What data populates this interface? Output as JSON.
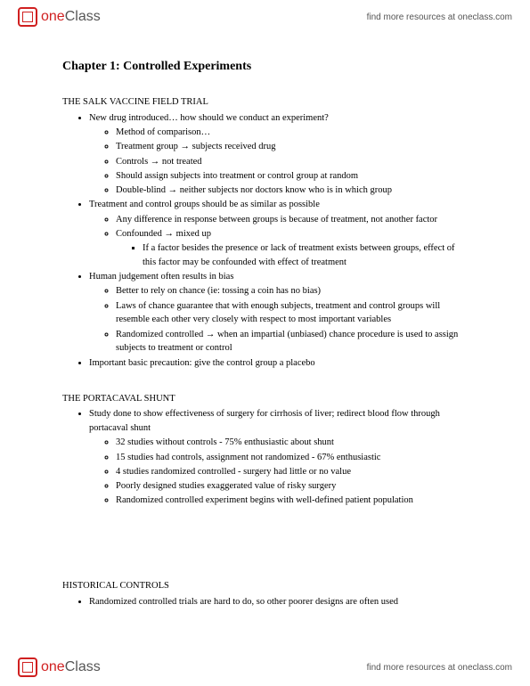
{
  "brand": {
    "one": "one",
    "class": "Class"
  },
  "header_link": "find more resources at oneclass.com",
  "chapter_title": "Chapter 1:  Controlled Experiments",
  "sec1": {
    "title": "THE SALK VACCINE FIELD TRIAL",
    "b1": "New drug introduced… how should we conduct an experiment?",
    "b1a": "Method of comparison…",
    "b1b": "Treatment group → subjects received drug",
    "b1c": "Controls → not treated",
    "b1d": "Should assign subjects into treatment or control group at random",
    "b1e": "Double-blind → neither subjects nor doctors know who is in which group",
    "b2": "Treatment and control groups should be as similar as possible",
    "b2a": "Any difference in response between groups is because of treatment, not another factor",
    "b2b": "Confounded → mixed up",
    "b2b1": "If a factor besides the presence or lack of treatment exists between groups, effect of this factor may be confounded with effect of treatment",
    "b3": "Human judgement often results in bias",
    "b3a": "Better to rely on chance (ie: tossing a coin has no bias)",
    "b3b": "Laws of chance guarantee that with enough subjects, treatment and control groups will resemble each other very closely with respect to most important variables",
    "b3c": "Randomized controlled → when an impartial (unbiased) chance procedure is used to assign subjects to treatment or control",
    "b4": "Important basic precaution: give the control group a placebo"
  },
  "sec2": {
    "title": "THE PORTACAVAL SHUNT",
    "b1": "Study done to show effectiveness of surgery for cirrhosis of liver; redirect blood flow through portacaval shunt",
    "b1a": "32 studies without controls - 75% enthusiastic about shunt",
    "b1b": "15 studies had controls, assignment not randomized - 67% enthusiastic",
    "b1c": "4 studies randomized controlled - surgery had little or no value",
    "b1d": "Poorly designed studies exaggerated value of risky surgery",
    "b1e": "Randomized controlled experiment begins with well-defined patient population"
  },
  "sec3": {
    "title": "HISTORICAL CONTROLS",
    "b1": "Randomized controlled trials are hard to do, so other poorer designs are often used"
  }
}
